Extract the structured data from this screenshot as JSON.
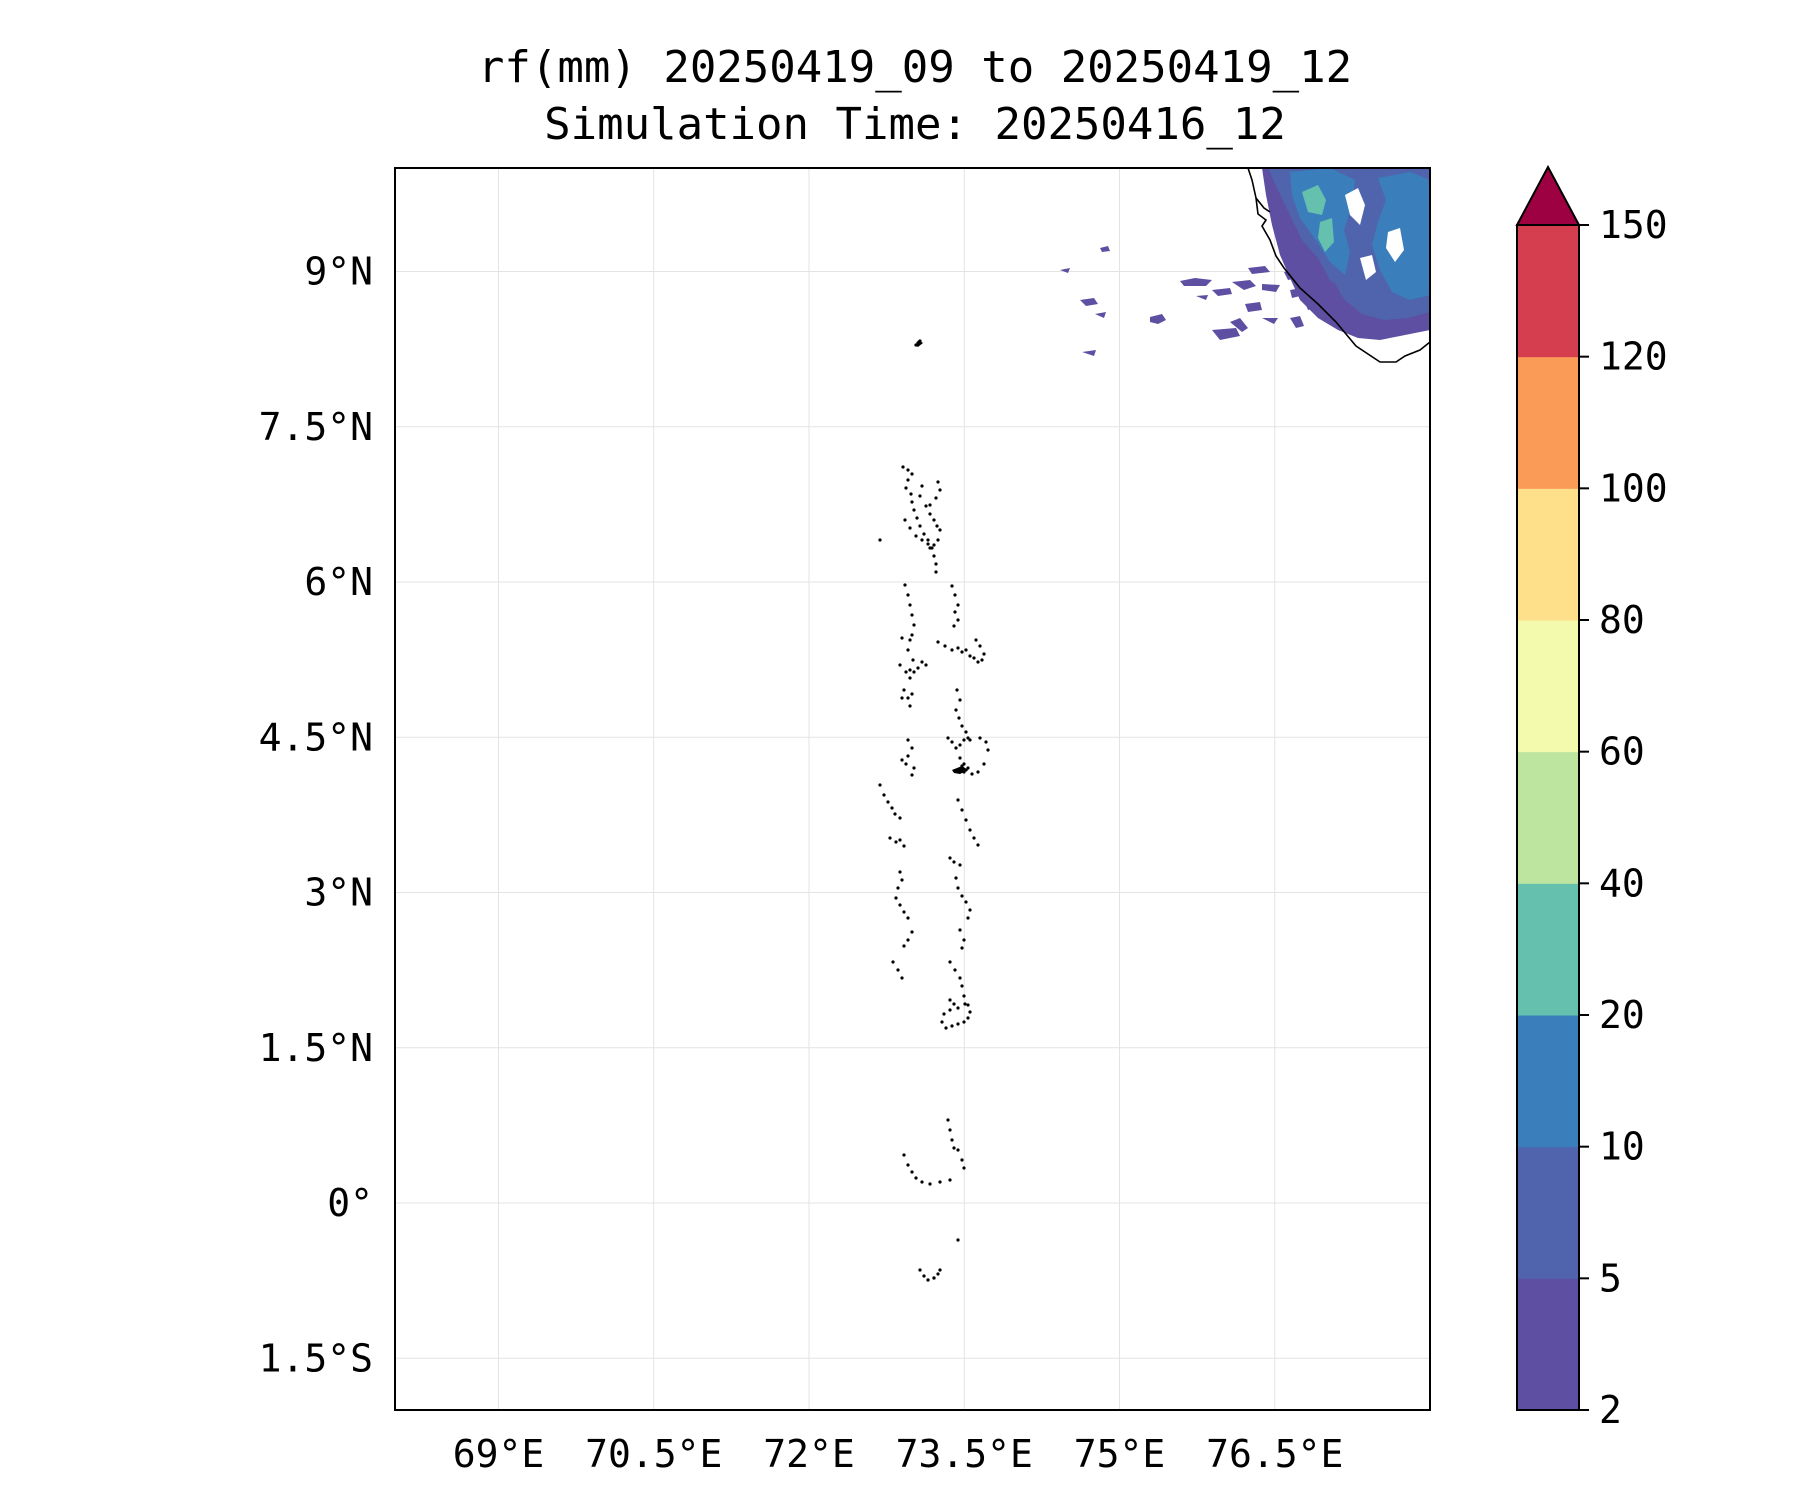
{
  "title": {
    "line1": "rf(mm) 20250419_09 to 20250419_12",
    "line2": "Simulation Time: 20250416_12"
  },
  "map": {
    "lon_range": [
      68,
      78
    ],
    "lat_range": [
      -2.0,
      10.0
    ],
    "x_ticks": [
      {
        "value": 69.0,
        "label": "69°E"
      },
      {
        "value": 70.5,
        "label": "70.5°E"
      },
      {
        "value": 72.0,
        "label": "72°E"
      },
      {
        "value": 73.5,
        "label": "73.5°E"
      },
      {
        "value": 75.0,
        "label": "75°E"
      },
      {
        "value": 76.5,
        "label": "76.5°E"
      }
    ],
    "y_ticks": [
      {
        "value": 9.0,
        "label": "9°N"
      },
      {
        "value": 7.5,
        "label": "7.5°N"
      },
      {
        "value": 6.0,
        "label": "6°N"
      },
      {
        "value": 4.5,
        "label": "4.5°N"
      },
      {
        "value": 3.0,
        "label": "3°N"
      },
      {
        "value": 1.5,
        "label": "1.5°N"
      },
      {
        "value": 0.0,
        "label": "0°"
      },
      {
        "value": -1.5,
        "label": "1.5°S"
      }
    ],
    "gridlines": true
  },
  "colorbar": {
    "levels": [
      {
        "value": 2,
        "label": "2"
      },
      {
        "value": 5,
        "label": "5"
      },
      {
        "value": 10,
        "label": "10"
      },
      {
        "value": 20,
        "label": "20"
      },
      {
        "value": 40,
        "label": "40"
      },
      {
        "value": 60,
        "label": "60"
      },
      {
        "value": 80,
        "label": "80"
      },
      {
        "value": 100,
        "label": "100"
      },
      {
        "value": 120,
        "label": "120"
      },
      {
        "value": 150,
        "label": "150"
      }
    ],
    "colors": [
      "#5e4fa2",
      "#4f64ad",
      "#3a7fbc",
      "#65c0ae",
      "#bee5a0",
      "#f4faad",
      "#fee08b",
      "#fa9b58",
      "#d53e4f"
    ],
    "extend_color": "#9e0142",
    "extend": "max"
  }
}
